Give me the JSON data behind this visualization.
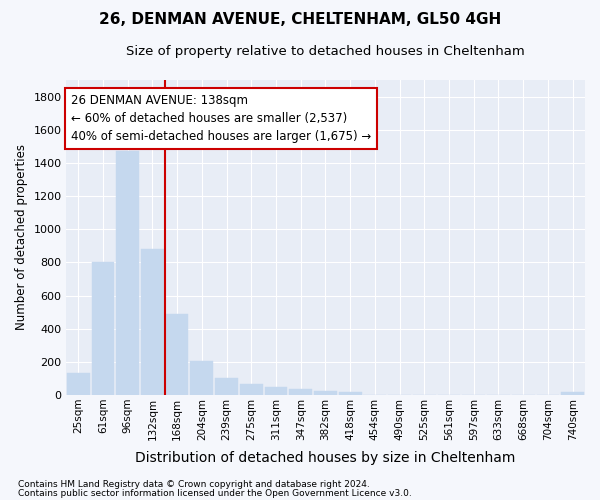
{
  "title_line1": "26, DENMAN AVENUE, CHELTENHAM, GL50 4GH",
  "title_line2": "Size of property relative to detached houses in Cheltenham",
  "xlabel": "Distribution of detached houses by size in Cheltenham",
  "ylabel": "Number of detached properties",
  "categories": [
    "25sqm",
    "61sqm",
    "96sqm",
    "132sqm",
    "168sqm",
    "204sqm",
    "239sqm",
    "275sqm",
    "311sqm",
    "347sqm",
    "382sqm",
    "418sqm",
    "454sqm",
    "490sqm",
    "525sqm",
    "561sqm",
    "597sqm",
    "633sqm",
    "668sqm",
    "704sqm",
    "740sqm"
  ],
  "values": [
    130,
    800,
    1470,
    880,
    490,
    205,
    105,
    65,
    47,
    35,
    25,
    20,
    0,
    0,
    0,
    0,
    0,
    0,
    0,
    0,
    15
  ],
  "bar_color": "#c5d8ee",
  "bar_edge_color": "#c5d8ee",
  "vline_color": "#cc0000",
  "vline_x": 3.5,
  "annotation_line1": "26 DENMAN AVENUE: 138sqm",
  "annotation_line2": "← 60% of detached houses are smaller (2,537)",
  "annotation_line3": "40% of semi-detached houses are larger (1,675) →",
  "annotation_box_facecolor": "#ffffff",
  "annotation_box_edgecolor": "#cc0000",
  "ylim": [
    0,
    1900
  ],
  "yticks": [
    0,
    200,
    400,
    600,
    800,
    1000,
    1200,
    1400,
    1600,
    1800
  ],
  "footnote1": "Contains HM Land Registry data © Crown copyright and database right 2024.",
  "footnote2": "Contains public sector information licensed under the Open Government Licence v3.0.",
  "fig_bg_color": "#f5f7fc",
  "plot_bg_color": "#e8edf6",
  "grid_color": "#ffffff",
  "title1_fontsize": 11,
  "title2_fontsize": 9.5,
  "xlabel_fontsize": 10,
  "ylabel_fontsize": 8.5,
  "tick_fontsize": 8,
  "xtick_fontsize": 7.5,
  "footnote_fontsize": 6.5,
  "annot_fontsize": 8.5
}
